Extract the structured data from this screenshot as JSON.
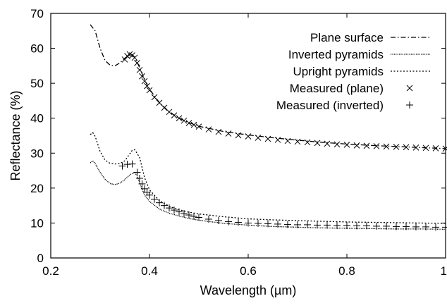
{
  "chart_data": {
    "type": "line",
    "xlabel": "Wavelength (µm)",
    "ylabel": "Reflectance (%)",
    "xlim": [
      0.2,
      1.0
    ],
    "ylim": [
      0,
      70
    ],
    "xticks": [
      "0.2",
      "0.4",
      "0.6",
      "0.8",
      "1"
    ],
    "xtick_values": [
      0.2,
      0.4,
      0.6,
      0.8,
      1.0
    ],
    "yticks": [
      "0",
      "10",
      "20",
      "30",
      "40",
      "50",
      "60",
      "70"
    ],
    "ytick_values": [
      0,
      10,
      20,
      30,
      40,
      50,
      60,
      70
    ],
    "grid": false,
    "legend_position": "top-right",
    "series": [
      {
        "name": "Plane surface",
        "style": "dash-dot",
        "color": "#000000",
        "x": [
          0.28,
          0.29,
          0.3,
          0.31,
          0.32,
          0.33,
          0.34,
          0.35,
          0.36,
          0.365,
          0.37,
          0.38,
          0.39,
          0.4,
          0.42,
          0.44,
          0.46,
          0.48,
          0.5,
          0.55,
          0.6,
          0.65,
          0.7,
          0.75,
          0.8,
          0.85,
          0.9,
          0.95,
          1.0
        ],
        "y": [
          66.8,
          65.0,
          60.0,
          56.5,
          55.2,
          55.0,
          55.8,
          57.2,
          58.1,
          58.2,
          57.5,
          54.5,
          51.0,
          48.3,
          44.5,
          41.8,
          40.0,
          38.7,
          37.7,
          36.2,
          35.2,
          34.4,
          33.7,
          33.1,
          32.6,
          32.2,
          31.9,
          31.6,
          31.3
        ]
      },
      {
        "name": "Inverted pyramids",
        "style": "fine-dotted",
        "color": "#000000",
        "x": [
          0.28,
          0.285,
          0.29,
          0.3,
          0.31,
          0.32,
          0.33,
          0.34,
          0.35,
          0.36,
          0.37,
          0.375,
          0.38,
          0.39,
          0.4,
          0.42,
          0.44,
          0.46,
          0.48,
          0.5,
          0.55,
          0.6,
          0.65,
          0.7,
          0.75,
          0.8,
          0.85,
          0.9,
          0.95,
          1.0
        ],
        "y": [
          27.2,
          27.8,
          27.0,
          24.5,
          22.5,
          21.3,
          21.0,
          21.4,
          22.4,
          23.8,
          24.5,
          23.5,
          21.5,
          18.0,
          16.2,
          14.0,
          12.8,
          12.0,
          11.3,
          10.8,
          9.9,
          9.4,
          9.0,
          8.8,
          8.6,
          8.5,
          8.4,
          8.3,
          8.3,
          8.2
        ]
      },
      {
        "name": "Upright pyramids",
        "style": "dotted",
        "color": "#000000",
        "x": [
          0.28,
          0.285,
          0.29,
          0.3,
          0.31,
          0.32,
          0.33,
          0.34,
          0.35,
          0.36,
          0.365,
          0.37,
          0.38,
          0.39,
          0.4,
          0.42,
          0.44,
          0.46,
          0.48,
          0.5,
          0.55,
          0.6,
          0.65,
          0.7,
          0.75,
          0.8,
          0.85,
          0.9,
          0.95,
          1.0
        ],
        "y": [
          35.3,
          35.9,
          34.8,
          30.5,
          28.0,
          27.1,
          26.9,
          27.0,
          27.8,
          29.8,
          30.8,
          31.0,
          28.8,
          23.0,
          19.5,
          16.4,
          14.8,
          13.8,
          13.1,
          12.6,
          11.8,
          11.2,
          10.9,
          10.7,
          10.5,
          10.3,
          10.2,
          10.1,
          10.0,
          9.9
        ]
      },
      {
        "name": "Measured (plane)",
        "style": "cross-markers",
        "color": "#000000",
        "x": [
          0.35,
          0.355,
          0.36,
          0.365,
          0.37,
          0.375,
          0.38,
          0.385,
          0.39,
          0.395,
          0.4,
          0.41,
          0.42,
          0.43,
          0.44,
          0.45,
          0.46,
          0.47,
          0.48,
          0.49,
          0.5,
          0.52,
          0.54,
          0.56,
          0.58,
          0.6,
          0.62,
          0.64,
          0.66,
          0.68,
          0.7,
          0.72,
          0.74,
          0.76,
          0.78,
          0.8,
          0.82,
          0.84,
          0.86,
          0.88,
          0.9,
          0.92,
          0.94,
          0.96,
          0.98,
          1.0
        ],
        "y": [
          56.8,
          57.8,
          58.3,
          58.0,
          57.3,
          55.8,
          53.8,
          52.0,
          50.6,
          49.2,
          48.0,
          46.0,
          44.4,
          43.0,
          41.8,
          40.8,
          40.0,
          39.3,
          38.6,
          38.1,
          37.6,
          36.8,
          36.1,
          35.6,
          35.1,
          34.8,
          34.4,
          34.1,
          33.8,
          33.5,
          33.3,
          33.1,
          32.9,
          32.7,
          32.5,
          32.4,
          32.2,
          32.1,
          32.0,
          31.9,
          31.8,
          31.7,
          31.6,
          31.5,
          31.4,
          31.3
        ]
      },
      {
        "name": "Measured (inverted)",
        "style": "plus-markers",
        "color": "#000000",
        "x": [
          0.345,
          0.355,
          0.365,
          0.375,
          0.38,
          0.385,
          0.39,
          0.395,
          0.4,
          0.41,
          0.42,
          0.43,
          0.44,
          0.45,
          0.46,
          0.47,
          0.48,
          0.49,
          0.5,
          0.52,
          0.54,
          0.56,
          0.58,
          0.6,
          0.62,
          0.64,
          0.66,
          0.68,
          0.7,
          0.72,
          0.74,
          0.76,
          0.78,
          0.8,
          0.82,
          0.84,
          0.86,
          0.88,
          0.9,
          0.92,
          0.94,
          0.96,
          0.98,
          1.0
        ],
        "y": [
          26.3,
          26.8,
          26.9,
          24.5,
          22.8,
          21.2,
          19.8,
          18.8,
          18.0,
          16.8,
          15.8,
          15.0,
          14.3,
          13.7,
          13.2,
          12.7,
          12.3,
          11.9,
          11.6,
          11.1,
          10.7,
          10.4,
          10.2,
          10.0,
          9.9,
          9.8,
          9.7,
          9.6,
          9.5,
          9.5,
          9.4,
          9.4,
          9.3,
          9.3,
          9.2,
          9.2,
          9.1,
          9.1,
          9.0,
          9.0,
          8.9,
          8.9,
          8.8,
          8.8
        ]
      }
    ]
  }
}
